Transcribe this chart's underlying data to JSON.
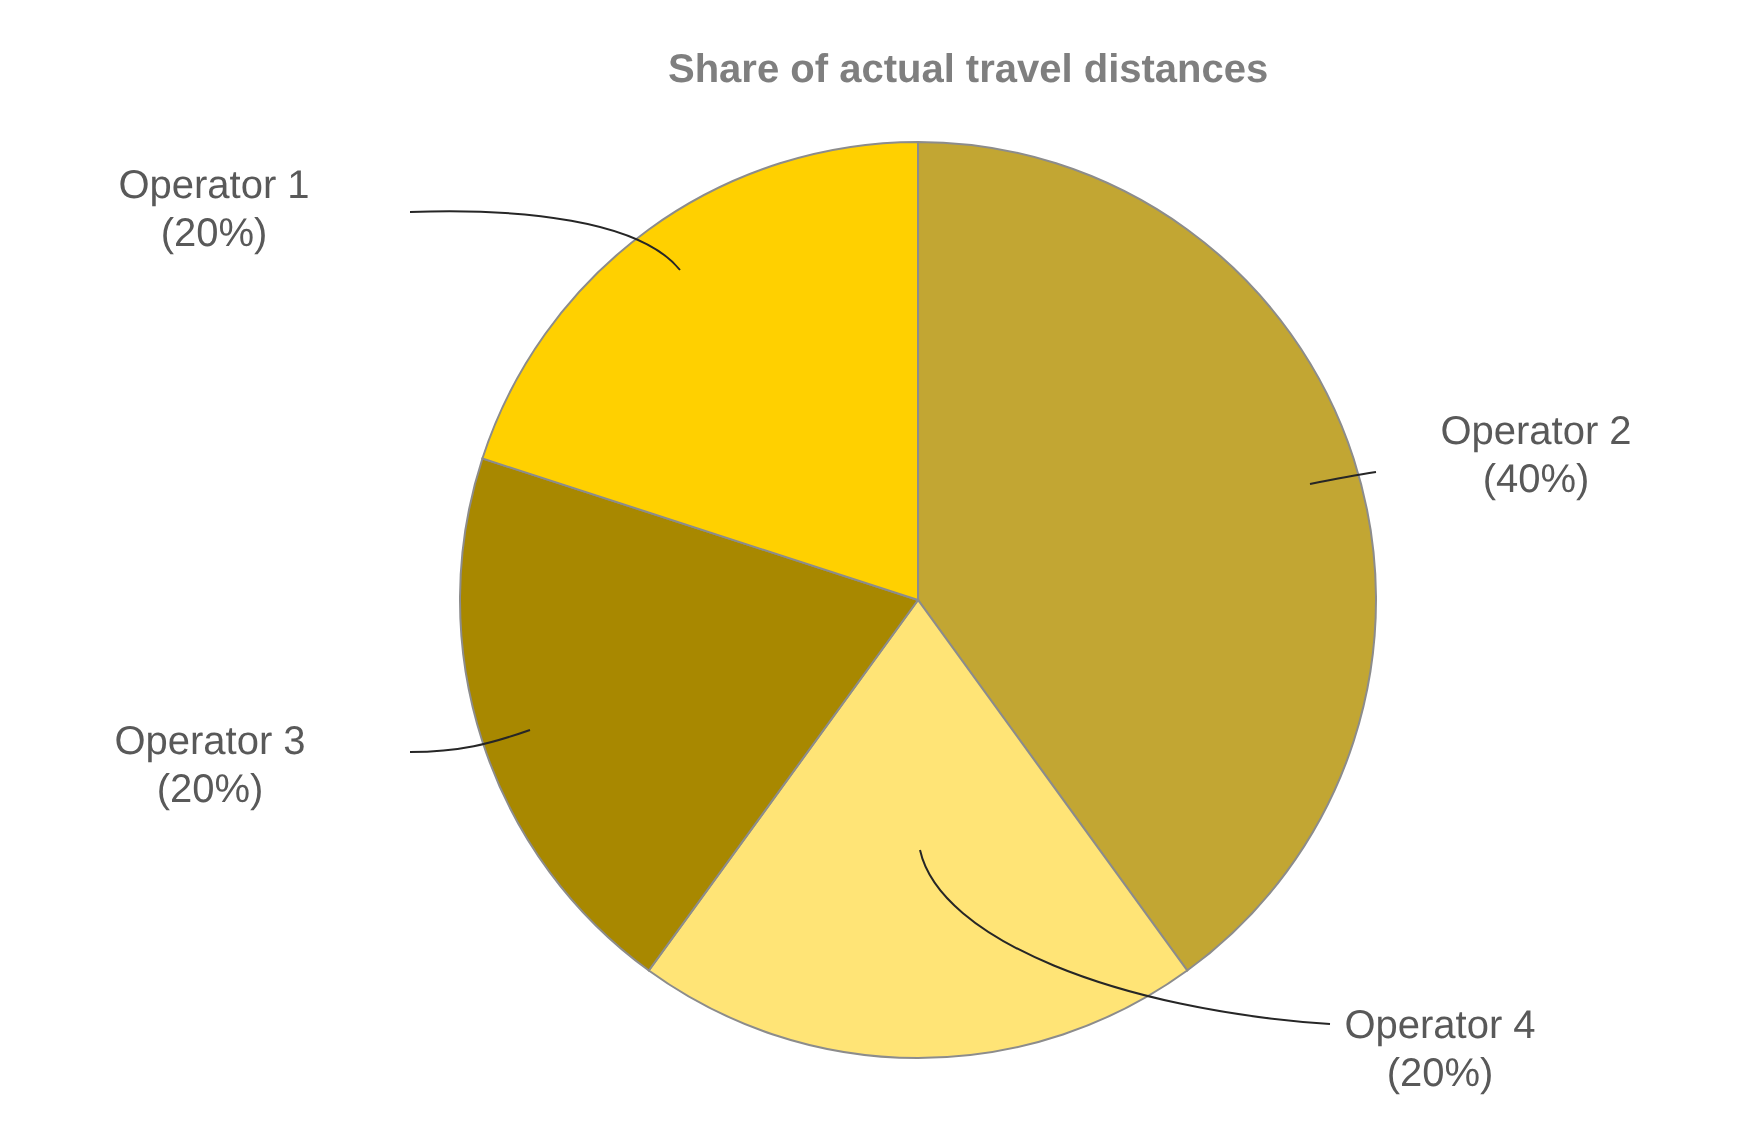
{
  "chart_data": {
    "type": "pie",
    "title": "Share of actual travel distances",
    "categories": [
      "Operator 2",
      "Operator 4",
      "Operator 3",
      "Operator 1"
    ],
    "values": [
      40,
      20,
      20,
      20
    ],
    "colors": [
      "#c2a633",
      "#ffe476",
      "#a88800",
      "#ffd000"
    ],
    "value_labels": [
      "(40%)",
      "(20%)",
      "(20%)",
      "(20%)"
    ]
  }
}
